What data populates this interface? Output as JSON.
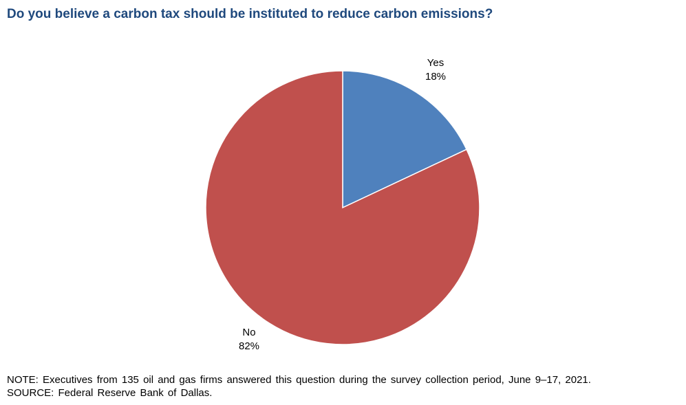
{
  "chart_data": {
    "type": "pie",
    "title": "Do you believe a carbon tax should be instituted to reduce carbon emissions?",
    "slices": [
      {
        "label": "Yes",
        "value": 18,
        "value_label": "18%",
        "color": "#4f81bd"
      },
      {
        "label": "No",
        "value": 82,
        "value_label": "82%",
        "color": "#c0504d"
      }
    ],
    "start_angle_deg": 0,
    "direction": "clockwise"
  },
  "notes": {
    "note": "NOTE: Executives from 135 oil and gas firms answered this question during the survey collection period, June 9–17, 2021.",
    "source": "SOURCE: Federal Reserve Bank of Dallas."
  }
}
